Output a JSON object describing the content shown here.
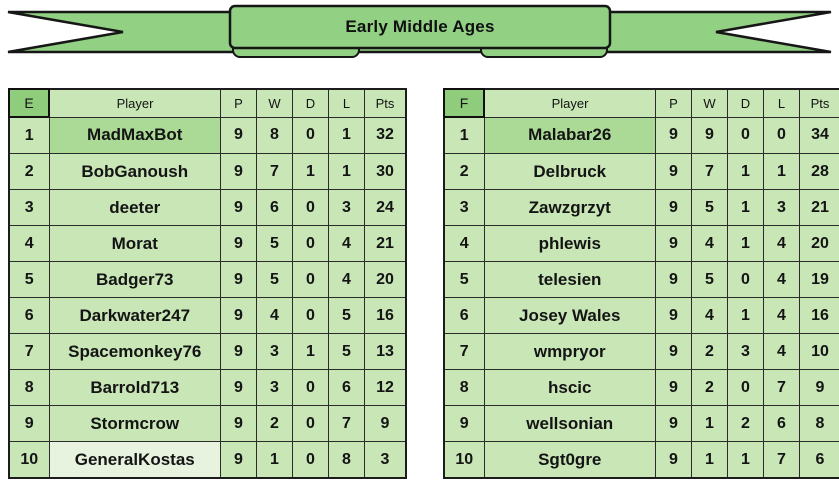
{
  "banner": {
    "title": "Early Middle Ages"
  },
  "colors": {
    "ribbon_green": "#92d083",
    "group_cell_green": "#8fcd7c",
    "cell_green": "#c8e6b6",
    "leader_cell_green": "#abda96",
    "pale_cell_green": "#e7f3de",
    "border_black": "#1c1c1c"
  },
  "tables": [
    {
      "group": "E",
      "headers": [
        "Player",
        "P",
        "W",
        "D",
        "L",
        "Pts"
      ],
      "rows": [
        {
          "rank": 1,
          "player": "MadMaxBot",
          "p": 9,
          "w": 8,
          "d": 0,
          "l": 1,
          "pts": 32,
          "highlight": "leader"
        },
        {
          "rank": 2,
          "player": "BobGanoush",
          "p": 9,
          "w": 7,
          "d": 1,
          "l": 1,
          "pts": 30
        },
        {
          "rank": 3,
          "player": "deeter",
          "p": 9,
          "w": 6,
          "d": 0,
          "l": 3,
          "pts": 24
        },
        {
          "rank": 4,
          "player": "Morat",
          "p": 9,
          "w": 5,
          "d": 0,
          "l": 4,
          "pts": 21
        },
        {
          "rank": 5,
          "player": "Badger73",
          "p": 9,
          "w": 5,
          "d": 0,
          "l": 4,
          "pts": 20
        },
        {
          "rank": 6,
          "player": "Darkwater247",
          "p": 9,
          "w": 4,
          "d": 0,
          "l": 5,
          "pts": 16
        },
        {
          "rank": 7,
          "player": "Spacemonkey76",
          "p": 9,
          "w": 3,
          "d": 1,
          "l": 5,
          "pts": 13
        },
        {
          "rank": 8,
          "player": "Barrold713",
          "p": 9,
          "w": 3,
          "d": 0,
          "l": 6,
          "pts": 12
        },
        {
          "rank": 9,
          "player": "Stormcrow",
          "p": 9,
          "w": 2,
          "d": 0,
          "l": 7,
          "pts": 9
        },
        {
          "rank": 10,
          "player": "GeneralKostas",
          "p": 9,
          "w": 1,
          "d": 0,
          "l": 8,
          "pts": 3,
          "highlight": "pale"
        }
      ]
    },
    {
      "group": "F",
      "headers": [
        "Player",
        "P",
        "W",
        "D",
        "L",
        "Pts"
      ],
      "rows": [
        {
          "rank": 1,
          "player": "Malabar26",
          "p": 9,
          "w": 9,
          "d": 0,
          "l": 0,
          "pts": 34,
          "highlight": "leader"
        },
        {
          "rank": 2,
          "player": "Delbruck",
          "p": 9,
          "w": 7,
          "d": 1,
          "l": 1,
          "pts": 28
        },
        {
          "rank": 3,
          "player": "Zawzgrzyt",
          "p": 9,
          "w": 5,
          "d": 1,
          "l": 3,
          "pts": 21
        },
        {
          "rank": 4,
          "player": "phlewis",
          "p": 9,
          "w": 4,
          "d": 1,
          "l": 4,
          "pts": 20
        },
        {
          "rank": 5,
          "player": "telesien",
          "p": 9,
          "w": 5,
          "d": 0,
          "l": 4,
          "pts": 19
        },
        {
          "rank": 6,
          "player": "Josey Wales",
          "p": 9,
          "w": 4,
          "d": 1,
          "l": 4,
          "pts": 16
        },
        {
          "rank": 7,
          "player": "wmpryor",
          "p": 9,
          "w": 2,
          "d": 3,
          "l": 4,
          "pts": 10
        },
        {
          "rank": 8,
          "player": "hscic",
          "p": 9,
          "w": 2,
          "d": 0,
          "l": 7,
          "pts": 9
        },
        {
          "rank": 9,
          "player": "wellsonian",
          "p": 9,
          "w": 1,
          "d": 2,
          "l": 6,
          "pts": 8
        },
        {
          "rank": 10,
          "player": "Sgt0gre",
          "p": 9,
          "w": 1,
          "d": 1,
          "l": 7,
          "pts": 6
        }
      ]
    }
  ]
}
